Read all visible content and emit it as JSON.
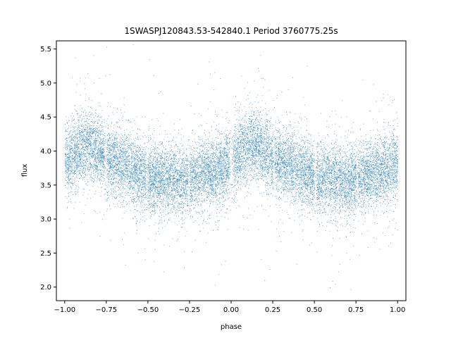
{
  "chart_data": {
    "type": "scatter",
    "title": "1SWASPJ120843.53-542840.1 Period 3760775.25s",
    "xlabel": "phase",
    "ylabel": "flux",
    "xlim": [
      -1.05,
      1.05
    ],
    "ylim": [
      1.8,
      5.62
    ],
    "xticks": [
      -1.0,
      -0.75,
      -0.5,
      -0.25,
      0.0,
      0.25,
      0.5,
      0.75,
      1.0
    ],
    "xtick_labels": [
      "−1.00",
      "−0.75",
      "−0.50",
      "−0.25",
      "0.00",
      "0.25",
      "0.50",
      "0.75",
      "1.00"
    ],
    "yticks": [
      2.0,
      2.5,
      3.0,
      3.5,
      4.0,
      4.5,
      5.0,
      5.5
    ],
    "ytick_labels": [
      "2.0",
      "2.5",
      "3.0",
      "3.5",
      "4.0",
      "4.5",
      "5.0",
      "5.5"
    ],
    "grid": false,
    "point_color": "#1f77b4",
    "phase_range": [
      -1.0,
      1.0
    ],
    "approx_point_count": 16000,
    "mean_flux_profile": {
      "phase": [
        0.0,
        0.05,
        0.1,
        0.15,
        0.2,
        0.25,
        0.3,
        0.35,
        0.4,
        0.45,
        0.5,
        0.55,
        0.6,
        0.65,
        0.7,
        0.75,
        0.8,
        0.85,
        0.9,
        0.95,
        1.0
      ],
      "flux": [
        3.85,
        3.95,
        4.05,
        4.1,
        4.0,
        3.9,
        3.85,
        3.8,
        3.75,
        3.68,
        3.6,
        3.58,
        3.6,
        3.58,
        3.55,
        3.6,
        3.65,
        3.68,
        3.7,
        3.75,
        3.85
      ]
    },
    "scatter_sd": 0.25
  }
}
